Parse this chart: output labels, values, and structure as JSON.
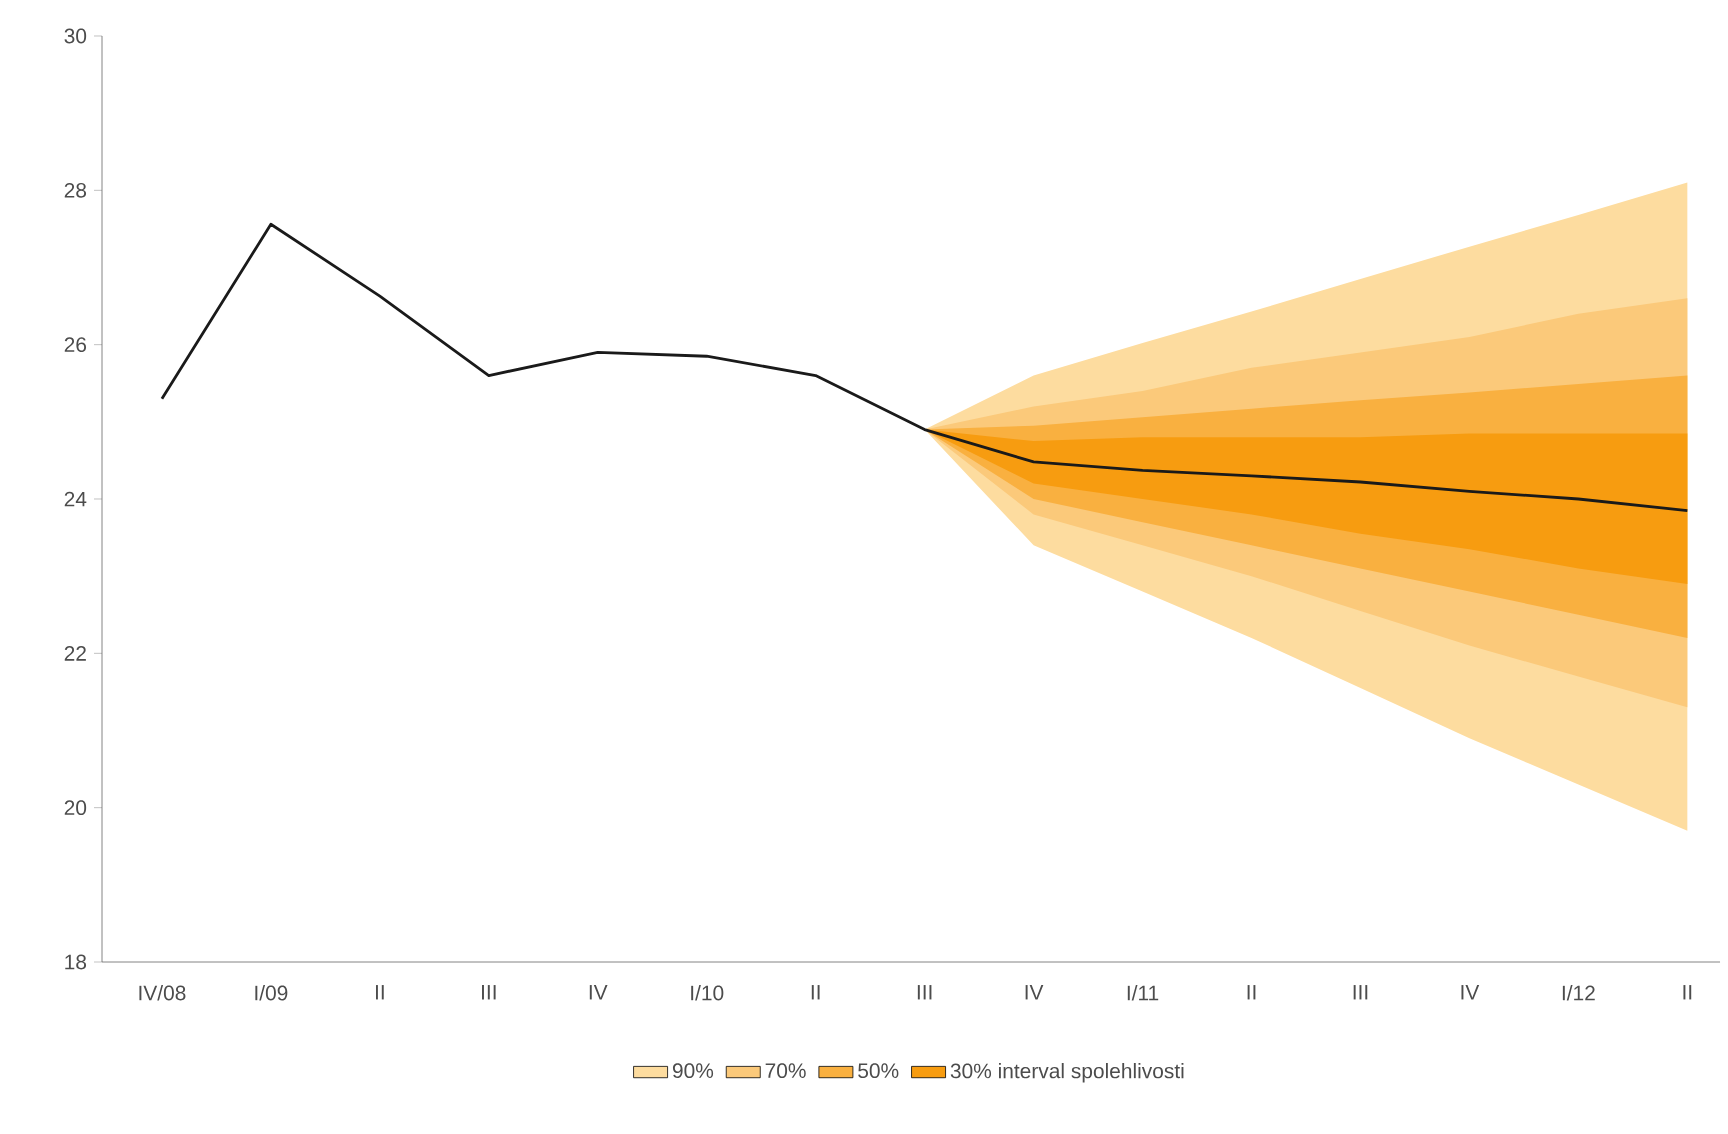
{
  "chart_data": {
    "type": "line",
    "categories": [
      "IV/08",
      "I/09",
      "II",
      "III",
      "IV",
      "I/10",
      "II",
      "III",
      "IV",
      "I/11",
      "II",
      "III",
      "IV",
      "I/12",
      "II"
    ],
    "ylim": [
      18,
      30
    ],
    "yticks": [
      18,
      20,
      22,
      24,
      26,
      28,
      30
    ],
    "legend": "bottom",
    "grid": false,
    "marker": "none",
    "line_style": "solid",
    "series": [
      {
        "name": "90%",
        "type": "area",
        "color": "#fddc9f",
        "values": [
          null,
          null,
          null,
          null,
          null,
          null,
          null,
          null,
          null,
          null,
          null,
          null,
          null,
          null,
          null
        ],
        "lower": [
          null,
          null,
          null,
          null,
          null,
          null,
          null,
          24.9,
          23.4,
          22.8,
          22.2,
          21.55,
          20.9,
          20.3,
          19.7
        ],
        "upper": [
          null,
          null,
          null,
          null,
          null,
          null,
          null,
          24.9,
          25.6,
          26.02,
          26.43,
          26.85,
          27.27,
          27.68,
          28.1
        ]
      },
      {
        "name": "70%",
        "type": "area",
        "color": "#fbc97a",
        "values": [
          null,
          null,
          null,
          null,
          null,
          null,
          null,
          null,
          null,
          null,
          null,
          null,
          null,
          null,
          null
        ],
        "lower": [
          null,
          null,
          null,
          null,
          null,
          null,
          null,
          24.9,
          23.8,
          23.4,
          23.0,
          22.55,
          22.1,
          21.7,
          21.3
        ],
        "upper": [
          null,
          null,
          null,
          null,
          null,
          null,
          null,
          24.9,
          25.2,
          25.4,
          25.7,
          25.9,
          26.1,
          26.4,
          26.6
        ]
      },
      {
        "name": "50%",
        "type": "area",
        "color": "#f9b040",
        "values": [
          null,
          null,
          null,
          null,
          null,
          null,
          null,
          null,
          null,
          null,
          null,
          null,
          null,
          null,
          null
        ],
        "lower": [
          null,
          null,
          null,
          null,
          null,
          null,
          null,
          24.9,
          24.0,
          23.7,
          23.4,
          23.1,
          22.8,
          22.5,
          22.2
        ],
        "upper": [
          null,
          null,
          null,
          null,
          null,
          null,
          null,
          24.9,
          24.95,
          25.06,
          25.17,
          25.28,
          25.38,
          25.49,
          25.6
        ]
      },
      {
        "name": "30% interval spolehlivosti",
        "type": "area",
        "color": "#f79c10",
        "values": [
          null,
          null,
          null,
          null,
          null,
          null,
          null,
          null,
          null,
          null,
          null,
          null,
          null,
          null,
          null
        ],
        "lower": [
          null,
          null,
          null,
          null,
          null,
          null,
          null,
          24.9,
          24.2,
          24.0,
          23.8,
          23.55,
          23.35,
          23.1,
          22.9
        ],
        "upper": [
          null,
          null,
          null,
          null,
          null,
          null,
          null,
          24.9,
          24.75,
          24.8,
          24.8,
          24.8,
          24.85,
          24.85,
          24.85
        ]
      },
      {
        "type": "line",
        "color": "#1a1a1a",
        "values": [
          25.3,
          27.56,
          26.63,
          25.6,
          25.9,
          25.85,
          25.6,
          24.9,
          24.48,
          24.37,
          24.3,
          24.22,
          24.1,
          24.0,
          23.85
        ]
      }
    ]
  }
}
